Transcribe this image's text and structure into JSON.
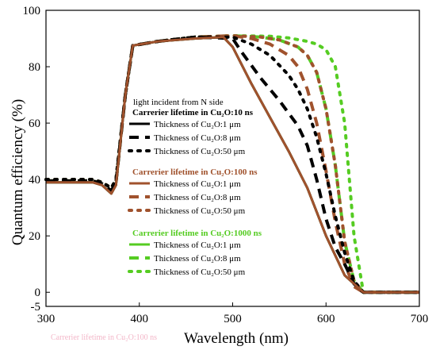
{
  "chart_data": {
    "type": "line",
    "xlabel": "Wavelength (nm)",
    "ylabel": "Quantum efficiency (%)",
    "xlim": [
      300,
      700
    ],
    "ylim": [
      -5,
      100
    ],
    "xticks": [
      "300",
      "400",
      "500",
      "600",
      "700"
    ],
    "yticks": [
      "-5",
      "0",
      "20",
      "40",
      "60",
      "80",
      "100"
    ],
    "xtick_values": [
      300,
      400,
      500,
      600,
      700
    ],
    "ytick_values": [
      -5,
      0,
      20,
      40,
      60,
      80,
      100
    ],
    "legend": {
      "note": "light incident from N side",
      "placement": "center-left",
      "groups": [
        {
          "title": "Carrerier lifetime in Cu₂O:10 ns",
          "color": "#000000",
          "entries": [
            "Thickness of Cu₂O:1 μm",
            "Thickness of Cu₂O:8 μm",
            "Thickness of Cu₂O:50 μm"
          ]
        },
        {
          "title": "Carrerier lifetime in Cu₂O:100 ns",
          "color": "#a0522d",
          "entries": [
            "Thickness of Cu₂O:1 μm",
            "Thickness of Cu₂O:8 μm",
            "Thickness of Cu₂O:50 μm"
          ]
        },
        {
          "title": "Carrerier lifetime in Cu₂O:1000 ns",
          "color": "#55cc22",
          "entries": [
            "Thickness of Cu₂O:1 μm",
            "Thickness of Cu₂O:8 μm",
            "Thickness of Cu₂O:50 μm"
          ]
        }
      ]
    },
    "series": [
      {
        "group": 2,
        "thickness": "50 μm",
        "color": "#55cc22",
        "style": "dot",
        "x": [
          300,
          350,
          360,
          370,
          375,
          385,
          393,
          420,
          460,
          500,
          540,
          560,
          580,
          590,
          600,
          610,
          620,
          630,
          640,
          700
        ],
        "y": [
          40,
          40,
          39,
          37,
          40,
          70,
          87.5,
          89,
          90.5,
          91,
          90.8,
          90.2,
          89,
          88,
          86,
          80,
          60,
          20,
          0,
          0
        ]
      },
      {
        "group": 2,
        "thickness": "8 μm",
        "color": "#55cc22",
        "style": "dash",
        "x": [
          300,
          350,
          360,
          370,
          375,
          385,
          393,
          420,
          460,
          500,
          530,
          550,
          570,
          580,
          590,
          600,
          610,
          620,
          630,
          640,
          700
        ],
        "y": [
          39.5,
          39.5,
          38.5,
          36,
          39,
          70,
          87.5,
          89,
          90.5,
          91,
          90.5,
          89.5,
          87,
          84,
          78,
          65,
          45,
          18,
          4,
          0,
          0
        ]
      },
      {
        "group": 2,
        "thickness": "1 μm",
        "color": "#55cc22",
        "style": "solid",
        "x": [
          300,
          350,
          360,
          370,
          375,
          385,
          393,
          420,
          460,
          490,
          500,
          520,
          540,
          560,
          580,
          600,
          620,
          640,
          700
        ],
        "y": [
          39,
          39,
          38,
          35,
          38,
          70,
          87.5,
          89,
          90,
          90.5,
          87,
          74,
          62,
          50,
          37,
          20,
          6,
          0,
          0
        ]
      },
      {
        "group": 1,
        "thickness": "50 μm",
        "color": "#a0522d",
        "style": "dot",
        "x": [
          300,
          350,
          360,
          370,
          375,
          385,
          393,
          420,
          460,
          500,
          530,
          550,
          570,
          580,
          590,
          600,
          610,
          620,
          630,
          640,
          700
        ],
        "y": [
          40,
          40,
          39,
          37,
          40,
          70,
          87.5,
          89,
          90.5,
          91,
          90.5,
          89.5,
          87,
          84,
          78,
          65,
          45,
          18,
          4,
          0,
          0
        ]
      },
      {
        "group": 1,
        "thickness": "8 μm",
        "color": "#a0522d",
        "style": "dash",
        "x": [
          300,
          350,
          360,
          370,
          375,
          385,
          393,
          420,
          460,
          500,
          520,
          540,
          560,
          570,
          580,
          590,
          600,
          610,
          620,
          630,
          640,
          700
        ],
        "y": [
          39.5,
          39.5,
          38.5,
          36,
          39,
          70,
          87.5,
          89,
          90.5,
          91,
          90,
          88,
          84,
          80,
          72,
          60,
          43,
          25,
          10,
          2,
          0,
          0
        ]
      },
      {
        "group": 0,
        "thickness": "50 μm",
        "color": "#000000",
        "style": "dot",
        "x": [
          300,
          350,
          360,
          370,
          375,
          385,
          393,
          420,
          460,
          500,
          520,
          540,
          560,
          570,
          580,
          590,
          600,
          610,
          620,
          630,
          640,
          700
        ],
        "y": [
          40,
          40,
          39,
          37,
          40,
          70,
          87.5,
          89,
          90.5,
          90.5,
          88,
          84,
          77,
          72,
          65,
          55,
          42,
          27,
          14,
          4,
          0,
          0
        ]
      },
      {
        "group": 0,
        "thickness": "8 μm",
        "color": "#000000",
        "style": "dash",
        "x": [
          300,
          350,
          360,
          370,
          375,
          385,
          393,
          420,
          460,
          500,
          510,
          530,
          550,
          570,
          580,
          590,
          600,
          610,
          620,
          630,
          640,
          700
        ],
        "y": [
          39.5,
          39.5,
          38.5,
          36,
          39,
          70,
          87.5,
          89,
          90.5,
          90,
          85,
          76,
          68,
          59,
          52,
          40,
          26,
          16,
          10,
          3,
          0,
          0
        ]
      },
      {
        "group": 0,
        "thickness": "1 μm",
        "color": "#000000",
        "style": "solid",
        "x": [
          300,
          350,
          360,
          370,
          375,
          385,
          393,
          420,
          460,
          490,
          500,
          520,
          540,
          560,
          580,
          600,
          620,
          640,
          700
        ],
        "y": [
          39,
          39,
          38,
          35,
          38,
          70,
          87.5,
          89,
          90,
          90.5,
          87,
          74,
          62,
          50,
          37,
          20,
          6,
          0,
          0
        ]
      },
      {
        "group": 1,
        "thickness": "1 μm",
        "color": "#a0522d",
        "style": "solid",
        "x": [
          300,
          350,
          360,
          370,
          375,
          385,
          393,
          420,
          460,
          490,
          500,
          520,
          540,
          560,
          580,
          600,
          620,
          640,
          700
        ],
        "y": [
          39,
          39,
          38,
          35,
          38,
          70,
          87.5,
          89,
          90,
          90.5,
          87,
          74,
          62,
          50,
          37,
          20,
          6,
          0,
          0
        ]
      }
    ]
  },
  "faded_label": "Carrerier lifetime in Cu₂O:100 ns"
}
